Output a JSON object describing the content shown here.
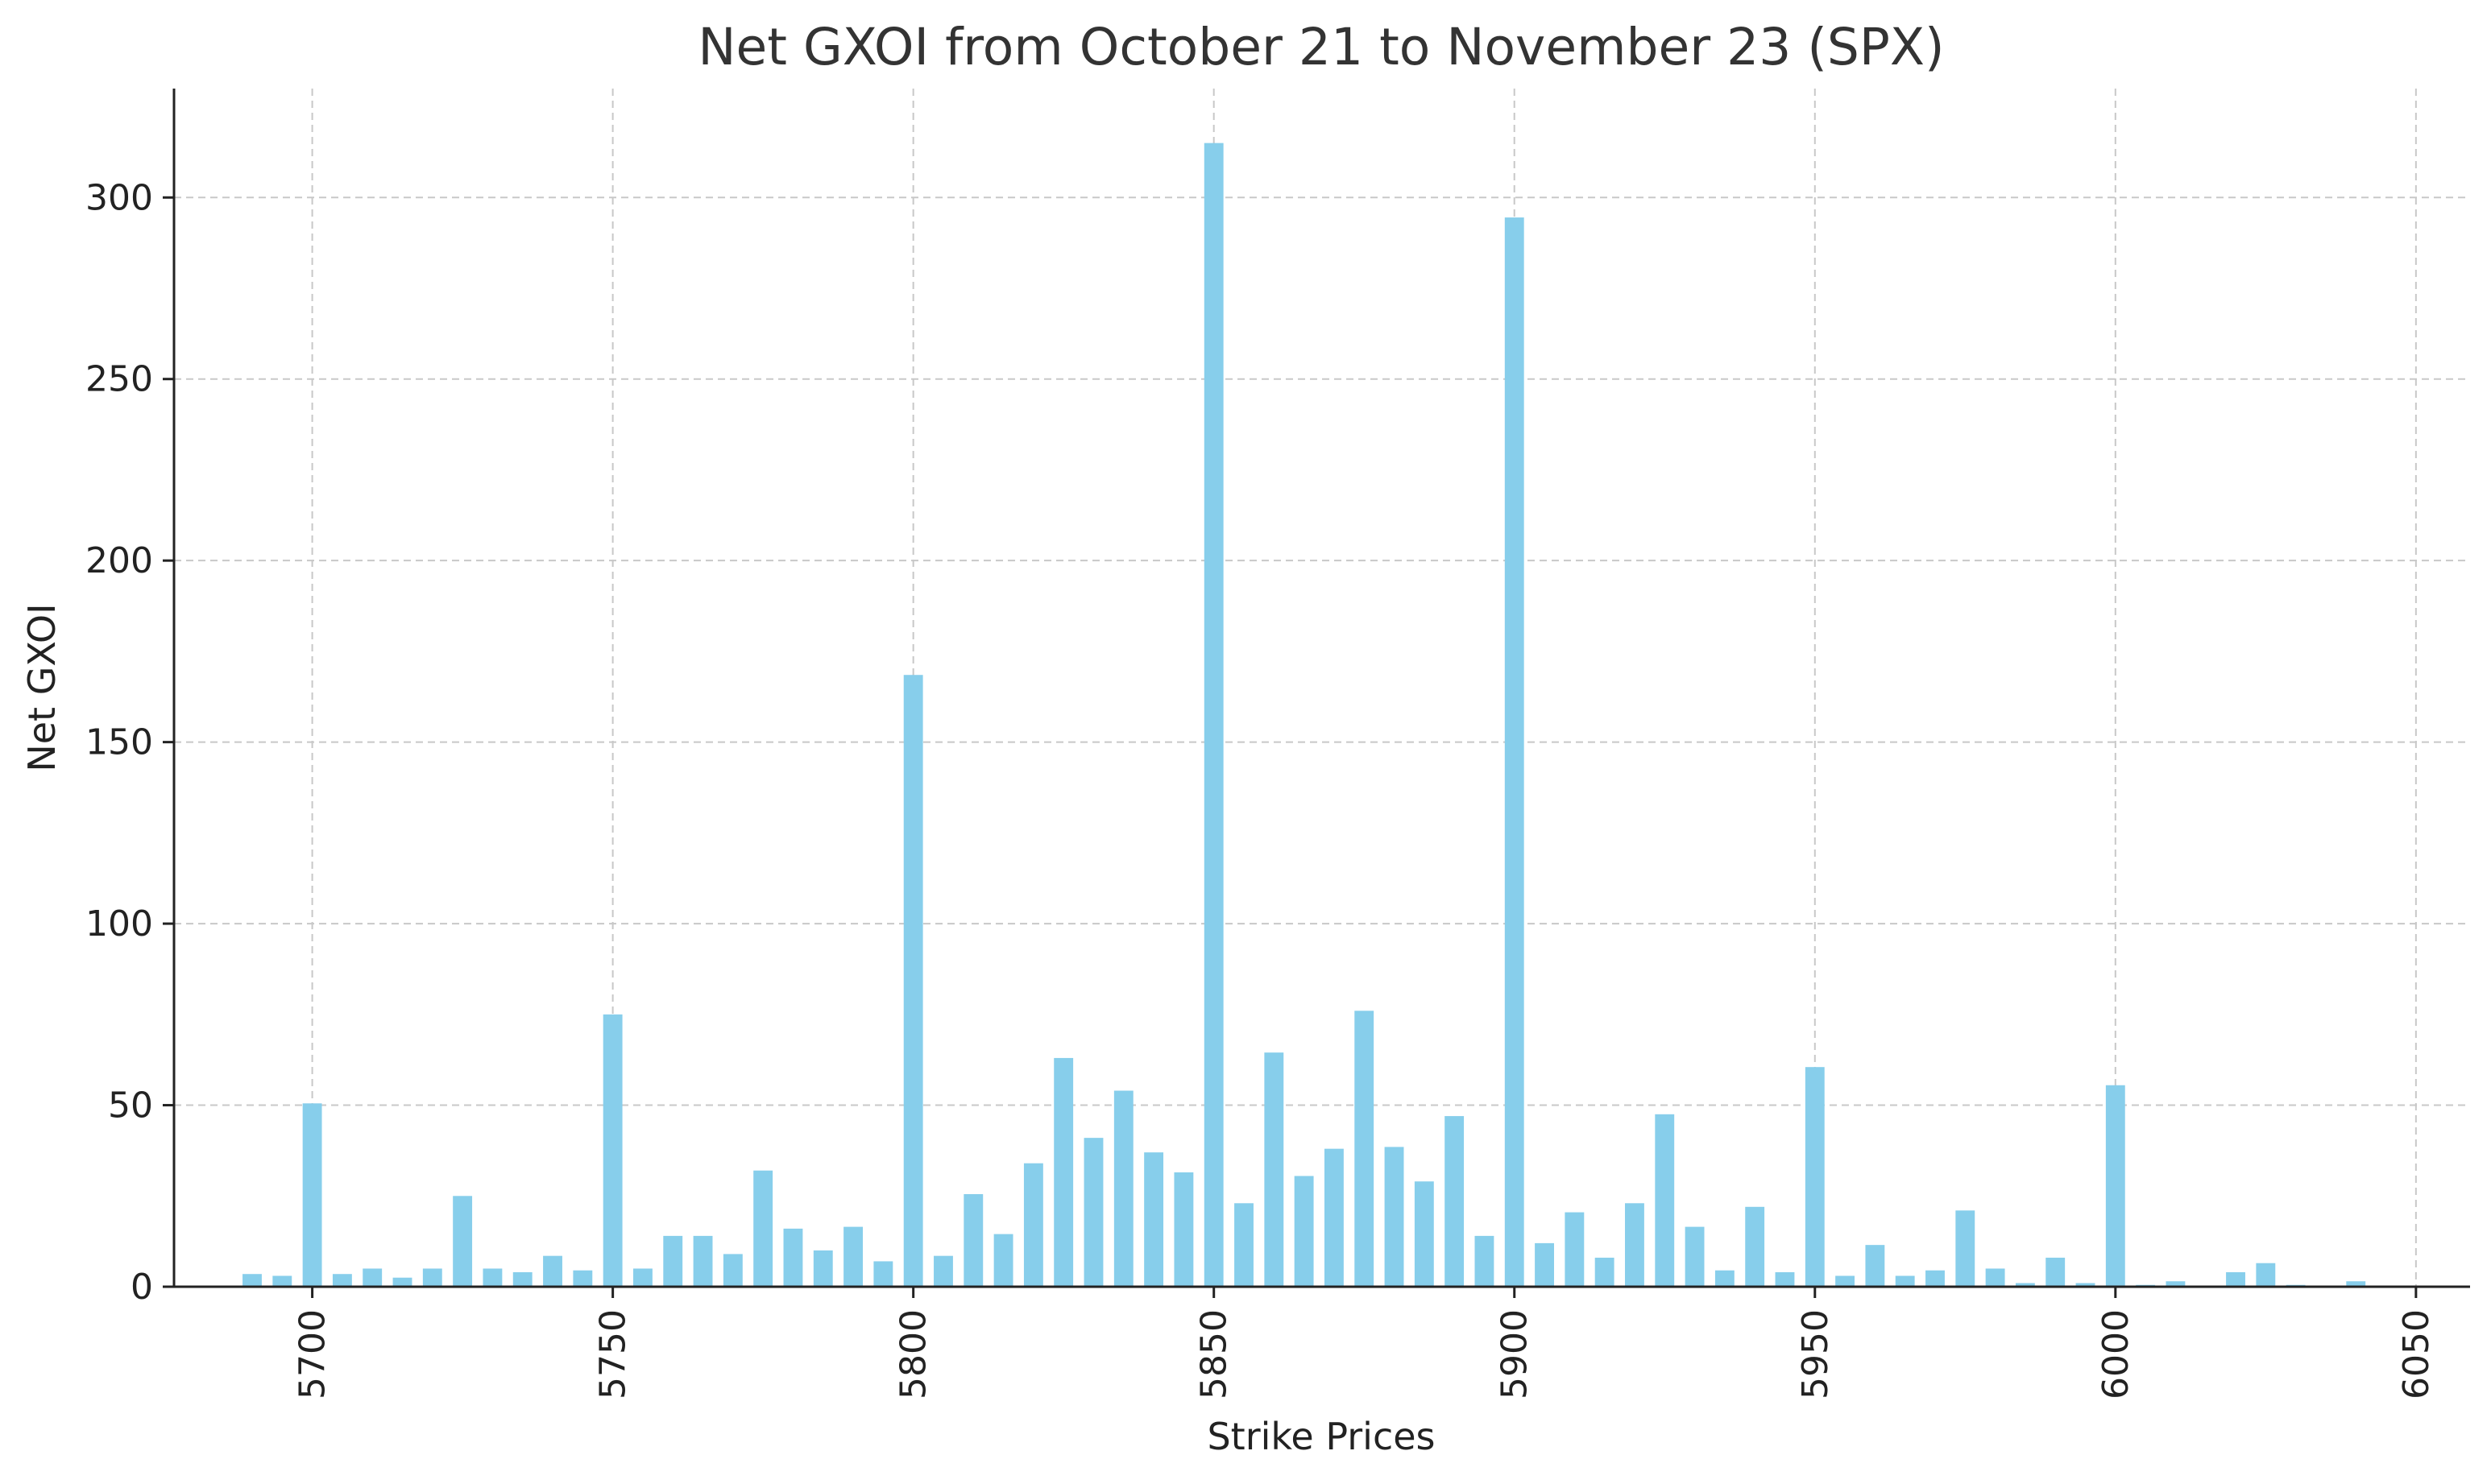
{
  "chart_data": {
    "type": "bar",
    "title": "Net GXOI from October 21 to November 23 (SPX)",
    "xlabel": "Strike Prices",
    "ylabel": "Net GXOI",
    "x": [
      5690,
      5695,
      5700,
      5705,
      5710,
      5715,
      5720,
      5725,
      5730,
      5735,
      5740,
      5745,
      5750,
      5755,
      5760,
      5765,
      5770,
      5775,
      5780,
      5785,
      5790,
      5795,
      5800,
      5805,
      5810,
      5815,
      5820,
      5825,
      5830,
      5835,
      5840,
      5845,
      5850,
      5855,
      5860,
      5865,
      5870,
      5875,
      5880,
      5885,
      5890,
      5895,
      5900,
      5905,
      5910,
      5915,
      5920,
      5925,
      5930,
      5935,
      5940,
      5945,
      5950,
      5955,
      5960,
      5965,
      5970,
      5975,
      5980,
      5985,
      5990,
      5995,
      6000,
      6005,
      6010,
      6020,
      6025,
      6030,
      6040
    ],
    "values": [
      3.5,
      3,
      50.5,
      3.5,
      5,
      2.5,
      5,
      25,
      5,
      4,
      8.5,
      4.5,
      75,
      5,
      14,
      14,
      9,
      32,
      16,
      10,
      16.5,
      7,
      168.5,
      8.5,
      25.5,
      14.5,
      34,
      63,
      41,
      54,
      37,
      31.5,
      315,
      23,
      64.5,
      30.5,
      38,
      76,
      38.5,
      29,
      47,
      14,
      294.5,
      12,
      20.5,
      8,
      23,
      47.5,
      16.5,
      4.5,
      22,
      4,
      60.5,
      3,
      11.5,
      3,
      4.5,
      21,
      5,
      1,
      8,
      1,
      55.5,
      0.5,
      1.5,
      4,
      6.5,
      0.5,
      1.5
    ],
    "xlim": [
      5677,
      6059
    ],
    "ylim": [
      0,
      330
    ],
    "xticks": [
      "5700",
      "5750",
      "5800",
      "5850",
      "5900",
      "5950",
      "6000",
      "6050"
    ],
    "yticks": [
      "0",
      "50",
      "100",
      "150",
      "200",
      "250",
      "300"
    ],
    "grid": true,
    "bar_color": "#87CEEB"
  }
}
